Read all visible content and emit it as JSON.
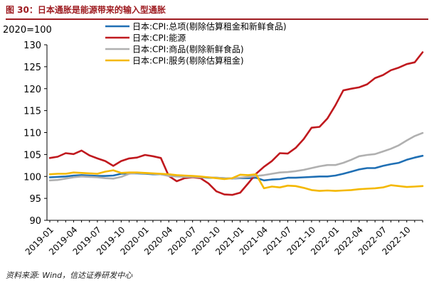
{
  "header": {
    "title": "图 30：日本通胀是能源带来的输入型通胀"
  },
  "footer": {
    "source": "资料来源: Wind，信达证券研发中心"
  },
  "chart_data": {
    "type": "line",
    "title": "图 30：日本通胀是能源带来的输入型通胀",
    "unit_label": "2020=100",
    "xlabel": "",
    "ylabel": "",
    "ylim": [
      90,
      130
    ],
    "yticks": [
      "90",
      "95",
      "100",
      "105",
      "110",
      "115",
      "120",
      "125",
      "130"
    ],
    "grid": false,
    "legend_position": "top-right",
    "x": [
      "2019-01",
      "2019-02",
      "2019-03",
      "2019-04",
      "2019-05",
      "2019-06",
      "2019-07",
      "2019-08",
      "2019-09",
      "2019-10",
      "2019-11",
      "2019-12",
      "2020-01",
      "2020-02",
      "2020-03",
      "2020-04",
      "2020-05",
      "2020-06",
      "2020-07",
      "2020-08",
      "2020-09",
      "2020-10",
      "2020-11",
      "2020-12",
      "2021-01",
      "2021-02",
      "2021-03",
      "2021-04",
      "2021-05",
      "2021-06",
      "2021-07",
      "2021-08",
      "2021-09",
      "2021-10",
      "2021-11",
      "2021-12",
      "2022-01",
      "2022-02",
      "2022-03",
      "2022-04",
      "2022-05",
      "2022-06",
      "2022-07",
      "2022-08",
      "2022-09",
      "2022-10",
      "2022-11",
      "2022-12"
    ],
    "xtick_labels": [
      "2019-01",
      "2019-04",
      "2019-07",
      "2019-10",
      "2020-01",
      "2020-04",
      "2020-07",
      "2020-10",
      "2021-01",
      "2021-04",
      "2021-07",
      "2021-10",
      "2022-01",
      "2022-04",
      "2022-07",
      "2022-10"
    ],
    "series": [
      {
        "name": "日本:CPI:总项(剔除估算租金和新鲜食品)",
        "color": "#1f6fb4",
        "values": [
          99.8,
          99.9,
          100.0,
          100.2,
          100.3,
          100.2,
          100.1,
          100.1,
          100.2,
          100.6,
          100.7,
          100.7,
          100.6,
          100.5,
          100.5,
          100.2,
          100.1,
          100.0,
          99.9,
          99.8,
          99.7,
          99.7,
          99.6,
          99.5,
          99.6,
          99.6,
          99.7,
          99.1,
          99.3,
          99.4,
          99.7,
          99.7,
          99.8,
          99.9,
          100.0,
          100.0,
          100.2,
          100.6,
          101.1,
          101.6,
          101.9,
          101.9,
          102.4,
          102.8,
          103.1,
          103.8,
          104.3,
          104.7
        ]
      },
      {
        "name": "日本:CPI:能源",
        "color": "#c0191e",
        "values": [
          104.2,
          104.5,
          105.3,
          105.1,
          105.9,
          104.8,
          104.1,
          103.5,
          102.4,
          103.5,
          104.1,
          104.3,
          104.9,
          104.6,
          104.2,
          100.1,
          98.9,
          99.6,
          99.8,
          99.6,
          98.4,
          96.6,
          95.9,
          95.8,
          96.3,
          98.4,
          100.6,
          102.2,
          103.5,
          105.3,
          105.2,
          106.5,
          108.5,
          111.1,
          111.3,
          113.2,
          116.2,
          119.6,
          120.0,
          120.3,
          121.0,
          122.4,
          123.1,
          124.2,
          124.8,
          125.6,
          126.0,
          128.3
        ]
      },
      {
        "name": "日本:CPI:商品(剔除新鲜食品)",
        "color": "#b0b0b0",
        "values": [
          99.1,
          99.2,
          99.5,
          99.8,
          100.0,
          99.9,
          99.8,
          99.6,
          99.5,
          99.9,
          100.6,
          100.8,
          100.7,
          100.6,
          100.5,
          100.1,
          100.0,
          99.9,
          99.9,
          99.8,
          99.8,
          99.7,
          99.6,
          99.5,
          99.7,
          99.9,
          100.1,
          100.3,
          100.6,
          100.9,
          101.0,
          101.2,
          101.5,
          101.9,
          102.3,
          102.6,
          102.6,
          103.1,
          103.8,
          104.6,
          104.9,
          105.1,
          105.7,
          106.3,
          107.1,
          108.2,
          109.2,
          109.9
        ]
      },
      {
        "name": "日本:CPI:服务(剔除估算租金)",
        "color": "#f4b800",
        "values": [
          100.5,
          100.6,
          100.6,
          100.9,
          100.8,
          100.7,
          100.6,
          101.1,
          101.4,
          100.8,
          100.9,
          100.9,
          100.8,
          100.7,
          100.6,
          100.5,
          100.3,
          100.2,
          100.1,
          100.0,
          99.8,
          99.6,
          99.4,
          99.6,
          100.4,
          100.3,
          100.5,
          97.3,
          97.7,
          97.5,
          97.9,
          97.8,
          97.4,
          96.9,
          96.7,
          96.8,
          96.7,
          96.8,
          96.9,
          97.1,
          97.2,
          97.3,
          97.5,
          98.0,
          97.8,
          97.6,
          97.7,
          97.8
        ]
      }
    ]
  }
}
